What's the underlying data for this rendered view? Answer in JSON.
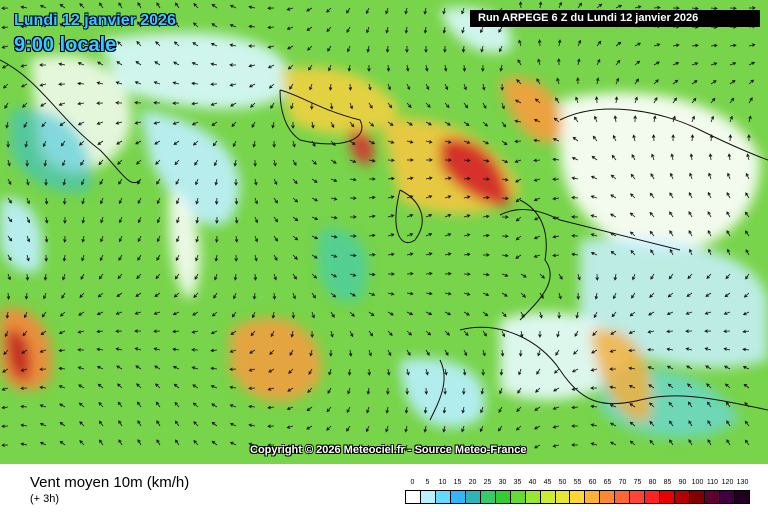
{
  "header": {
    "date": "Lundi 12 janvier 2026",
    "time": "9:00 locale",
    "run": "Run ARPEGE 6 Z du Lundi 12 janvier 2026"
  },
  "map": {
    "copyright": "Copyright © 2026 Meteociel.fr - Source Meteo-France"
  },
  "legend": {
    "title": "Vent moyen 10m (km/h)",
    "subtitle": "(+ 3h)",
    "labels": [
      "0",
      "5",
      "10",
      "15",
      "20",
      "25",
      "30",
      "35",
      "40",
      "45",
      "50",
      "55",
      "60",
      "65",
      "70",
      "75",
      "80",
      "85",
      "90",
      "100",
      "110",
      "120",
      "130"
    ],
    "colors": [
      "#ffffff",
      "#b8f0ff",
      "#66d9ff",
      "#33b5ff",
      "#2db4b4",
      "#33cc66",
      "#33cc33",
      "#66d933",
      "#99e633",
      "#ccec33",
      "#e6e633",
      "#ffd633",
      "#ffb233",
      "#ff8833",
      "#ff6633",
      "#ff4433",
      "#ff2222",
      "#e60000",
      "#b30000",
      "#800000",
      "#600030",
      "#400040",
      "#200020"
    ]
  }
}
